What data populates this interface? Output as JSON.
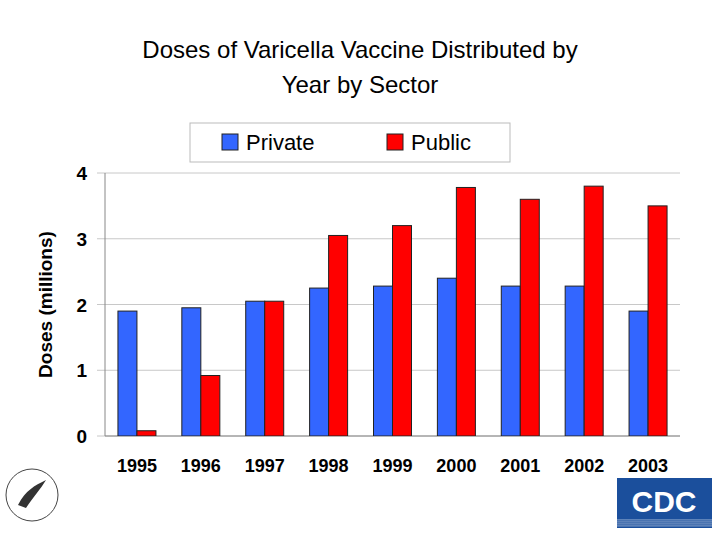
{
  "chart_data": {
    "type": "bar",
    "title": "Doses of Varicella Vaccine Distributed by Year by Sector",
    "y_label": "Doses (millions)",
    "categories": [
      "1995",
      "1996",
      "1997",
      "1998",
      "1999",
      "2000",
      "2001",
      "2002",
      "2003"
    ],
    "series": [
      {
        "name": "Private",
        "color": "#3366ff",
        "values": [
          1.9,
          1.95,
          2.05,
          2.25,
          2.28,
          2.4,
          2.28,
          2.28,
          1.9
        ]
      },
      {
        "name": "Public",
        "color": "#ff0000",
        "values": [
          0.08,
          0.92,
          2.05,
          3.05,
          3.2,
          3.78,
          3.6,
          3.8,
          3.5
        ]
      }
    ],
    "ylim": [
      0,
      4
    ],
    "yticks": [
      0,
      1,
      2,
      3,
      4
    ],
    "grid": true,
    "legend": "top",
    "annotations": [
      "CDC"
    ]
  }
}
